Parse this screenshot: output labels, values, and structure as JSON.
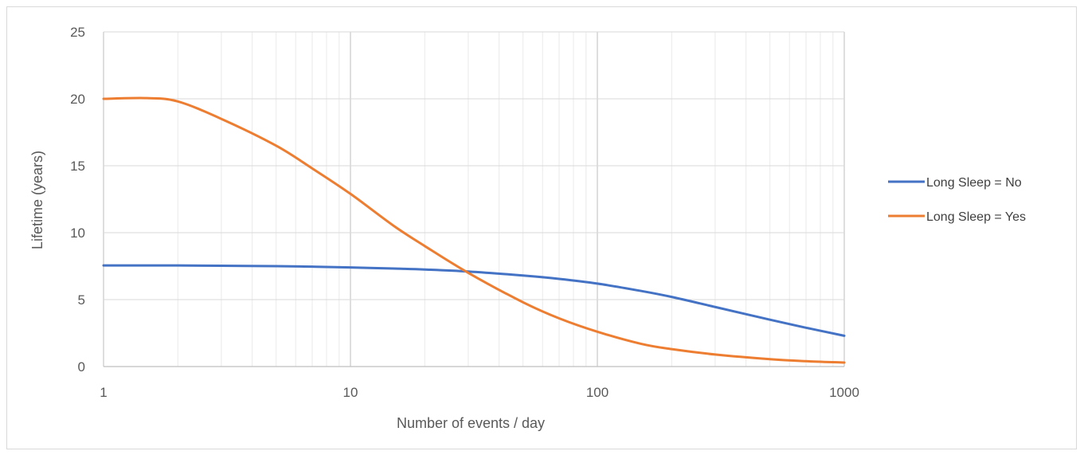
{
  "chart_data": {
    "type": "line",
    "title": "",
    "xlabel": "Number of events / day",
    "ylabel": "Lifetime (years)",
    "x_scale": "log10",
    "xlim": [
      1,
      1000
    ],
    "ylim": [
      0,
      25
    ],
    "x_ticks": [
      1,
      10,
      100,
      1000
    ],
    "x_tick_labels": [
      "1",
      "10",
      "100",
      "1000"
    ],
    "y_ticks": [
      0,
      5,
      10,
      15,
      20,
      25
    ],
    "y_tick_labels": [
      "0",
      "5",
      "10",
      "15",
      "20",
      "25"
    ],
    "grid": true,
    "legend_position": "right",
    "series": [
      {
        "name": "Long Sleep = No",
        "color": "#4472c4",
        "x": [
          1,
          2,
          3,
          5,
          7,
          10,
          15,
          20,
          30,
          50,
          70,
          100,
          150,
          200,
          300,
          500,
          700,
          1000
        ],
        "y": [
          7.55,
          7.55,
          7.53,
          7.5,
          7.46,
          7.4,
          7.32,
          7.25,
          7.1,
          6.8,
          6.55,
          6.2,
          5.65,
          5.2,
          4.45,
          3.5,
          2.9,
          2.3
        ]
      },
      {
        "name": "Long Sleep = Yes",
        "color": "#ed7d31",
        "x": [
          1,
          1.5,
          2,
          3,
          5,
          7,
          10,
          15,
          20,
          30,
          50,
          70,
          100,
          150,
          200,
          300,
          500,
          700,
          1000
        ],
        "y": [
          20.0,
          20.05,
          19.8,
          18.5,
          16.5,
          14.8,
          12.9,
          10.5,
          9.0,
          7.0,
          4.8,
          3.6,
          2.6,
          1.7,
          1.3,
          0.9,
          0.55,
          0.4,
          0.3
        ]
      }
    ]
  }
}
